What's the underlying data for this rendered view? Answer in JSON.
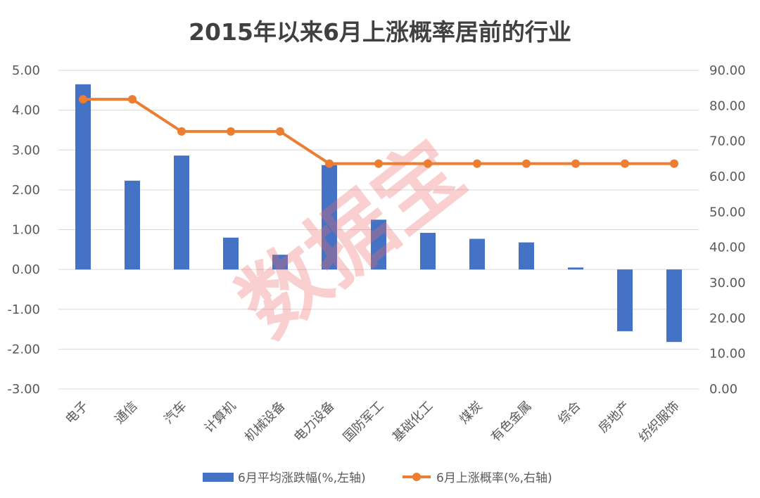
{
  "chart_data": {
    "type": "bar",
    "title": "2015年以来6月上涨概率居前的行业",
    "categories": [
      "电子",
      "通信",
      "汽车",
      "计算机",
      "机械设备",
      "电力设备",
      "国防军工",
      "基础化工",
      "煤炭",
      "有色金属",
      "综合",
      "房地产",
      "纺织服饰"
    ],
    "series": [
      {
        "name": "6月平均涨跌幅(%,左轴)",
        "type": "bar",
        "axis": "left",
        "color": "#4472C4",
        "values": [
          4.65,
          2.23,
          2.86,
          0.8,
          0.37,
          2.62,
          1.25,
          0.92,
          0.77,
          0.68,
          0.05,
          -1.55,
          -1.82
        ]
      },
      {
        "name": "6月上涨概率(%,右轴)",
        "type": "line",
        "axis": "right",
        "color": "#ED7D31",
        "values": [
          81.82,
          81.82,
          72.73,
          72.73,
          72.73,
          63.64,
          63.64,
          63.64,
          63.64,
          63.64,
          63.64,
          63.64,
          63.64
        ]
      }
    ],
    "left_axis": {
      "ylim": [
        -3,
        5
      ],
      "ticks": [
        "-3.00",
        "-2.00",
        "-1.00",
        "0.00",
        "1.00",
        "2.00",
        "3.00",
        "4.00",
        "5.00"
      ]
    },
    "right_axis": {
      "ylim": [
        0,
        90
      ],
      "ticks": [
        "0.00",
        "10.00",
        "20.00",
        "30.00",
        "40.00",
        "50.00",
        "60.00",
        "70.00",
        "80.00",
        "90.00"
      ]
    },
    "grid": true,
    "legend_position": "bottom",
    "watermark": "数据宝"
  }
}
